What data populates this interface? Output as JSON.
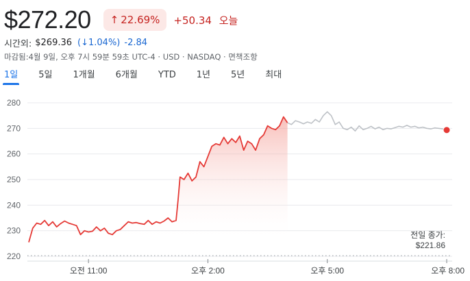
{
  "quote": {
    "price": "$272.20",
    "change_pct": "22.69%",
    "change_arrow": "↑",
    "change_abs": "+50.34",
    "change_period": "오늘"
  },
  "after_hours": {
    "label": "시간외:",
    "price": "$269.36",
    "pct": "(↓1.04%)",
    "abs": "-2.84"
  },
  "meta": "마감됨:4월 9일, 오후 7시 59분 59초 UTC-4 · USD · NASDAQ · 면책조항",
  "tabs": [
    {
      "label": "1일",
      "active": true
    },
    {
      "label": "5일",
      "active": false
    },
    {
      "label": "1개월",
      "active": false
    },
    {
      "label": "6개월",
      "active": false
    },
    {
      "label": "YTD",
      "active": false
    },
    {
      "label": "1년",
      "active": false
    },
    {
      "label": "5년",
      "active": false
    },
    {
      "label": "최대",
      "active": false
    }
  ],
  "colors": {
    "regular_line": "#e53935",
    "extended_line": "#bdc1c6",
    "fill_top": "#f28b82",
    "end_dot": "#e53935",
    "prev_close_line": "#9aa0a6"
  },
  "chart_data": {
    "type": "line",
    "ylim": [
      220,
      280
    ],
    "yticks": [
      220,
      230,
      240,
      250,
      260,
      270,
      280
    ],
    "xlim": [
      9.5,
      20.0
    ],
    "xticks": [
      {
        "x": 11,
        "label": "오전 11:00"
      },
      {
        "x": 14,
        "label": "오후 2:00"
      },
      {
        "x": 17,
        "label": "오후 5:00"
      },
      {
        "x": 20,
        "label": "오후 8:00"
      }
    ],
    "previous_close": {
      "label": "전일 종가:",
      "value": 221.86,
      "value_text": "$221.86"
    },
    "series": [
      {
        "segment": "regular",
        "x": [
          9.5,
          9.6,
          9.7,
          9.8,
          9.9,
          10.0,
          10.1,
          10.2,
          10.3,
          10.4,
          10.5,
          10.6,
          10.7,
          10.8,
          10.9,
          11.0,
          11.1,
          11.2,
          11.3,
          11.4,
          11.5,
          11.6,
          11.7,
          11.8,
          11.9,
          12.0,
          12.1,
          12.2,
          12.3,
          12.4,
          12.5,
          12.6,
          12.7,
          12.8,
          12.9,
          13.0,
          13.1,
          13.2,
          13.25,
          13.3,
          13.4,
          13.5,
          13.6,
          13.7,
          13.8,
          13.9,
          14.0,
          14.1,
          14.2,
          14.3,
          14.4,
          14.5,
          14.6,
          14.7,
          14.8,
          14.9,
          15.0,
          15.1,
          15.2,
          15.3,
          15.4,
          15.5,
          15.6,
          15.7,
          15.8,
          15.9,
          16.0
        ],
        "y": [
          225.5,
          231.0,
          233.0,
          232.5,
          234.0,
          232.0,
          233.5,
          231.5,
          232.8,
          233.8,
          233.0,
          232.5,
          232.0,
          228.5,
          230.0,
          229.5,
          229.8,
          231.5,
          230.0,
          231.0,
          229.0,
          228.5,
          230.0,
          230.5,
          232.0,
          233.5,
          233.0,
          233.2,
          232.8,
          232.5,
          234.0,
          232.5,
          233.5,
          233.0,
          233.8,
          235.0,
          233.5,
          234.0,
          242.0,
          251.0,
          250.0,
          252.5,
          249.5,
          251.0,
          257.0,
          255.0,
          259.0,
          263.0,
          264.0,
          263.5,
          266.5,
          264.0,
          266.0,
          264.5,
          267.0,
          261.5,
          265.0,
          264.0,
          261.5,
          266.0,
          267.5,
          271.0,
          270.0,
          269.5,
          271.0,
          274.5,
          272.2
        ]
      },
      {
        "segment": "extended",
        "x": [
          16.0,
          16.1,
          16.2,
          16.3,
          16.4,
          16.5,
          16.6,
          16.7,
          16.8,
          16.9,
          17.0,
          17.1,
          17.2,
          17.3,
          17.4,
          17.5,
          17.6,
          17.7,
          17.8,
          17.9,
          18.0,
          18.1,
          18.2,
          18.3,
          18.4,
          18.5,
          18.6,
          18.7,
          18.8,
          18.9,
          19.0,
          19.1,
          19.2,
          19.3,
          19.4,
          19.5,
          19.6,
          19.7,
          19.8,
          19.9,
          20.0
        ],
        "y": [
          272.2,
          271.5,
          273.0,
          272.5,
          271.8,
          272.5,
          272.0,
          273.5,
          272.5,
          275.0,
          276.5,
          275.0,
          271.5,
          272.5,
          270.0,
          269.5,
          270.5,
          269.0,
          271.0,
          269.5,
          270.0,
          270.8,
          269.8,
          270.5,
          269.5,
          270.0,
          269.8,
          270.3,
          270.8,
          270.5,
          271.2,
          270.5,
          270.8,
          270.2,
          270.5,
          270.0,
          269.8,
          270.2,
          270.0,
          269.8,
          269.36
        ]
      }
    ]
  }
}
